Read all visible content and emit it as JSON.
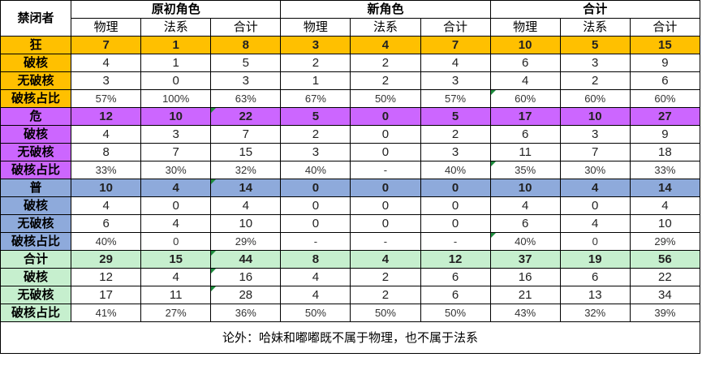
{
  "header": {
    "corner": "禁闭者",
    "groups": [
      "原初角色",
      "新角色",
      "合计"
    ],
    "subs": [
      "物理",
      "法系",
      "合计",
      "物理",
      "法系",
      "合计",
      "物理",
      "法系",
      "合计"
    ]
  },
  "colors": {
    "kuang": "#ffc000",
    "wei": "#cc66ff",
    "pu": "#8eaadb",
    "total": "#c6efce",
    "marker": "#1e8e3e"
  },
  "sections": [
    {
      "key": "kuang",
      "name": "狂",
      "totals": [
        "7",
        "1",
        "8",
        "3",
        "4",
        "7",
        "10",
        "5",
        "15"
      ],
      "rows": [
        {
          "label": "破核",
          "values": [
            "4",
            "1",
            "5",
            "2",
            "2",
            "4",
            "6",
            "3",
            "9"
          ]
        },
        {
          "label": "无破核",
          "values": [
            "3",
            "0",
            "3",
            "1",
            "2",
            "3",
            "4",
            "2",
            "6"
          ]
        },
        {
          "label": "破核占比",
          "values": [
            "57%",
            "100%",
            "63%",
            "67%",
            "50%",
            "57%",
            "60%",
            "60%",
            "60%"
          ]
        }
      ]
    },
    {
      "key": "wei",
      "name": "危",
      "totals": [
        "12",
        "10",
        "22",
        "5",
        "0",
        "5",
        "17",
        "10",
        "27"
      ],
      "rows": [
        {
          "label": "破核",
          "values": [
            "4",
            "3",
            "7",
            "2",
            "0",
            "2",
            "6",
            "3",
            "9"
          ]
        },
        {
          "label": "无破核",
          "values": [
            "8",
            "7",
            "15",
            "3",
            "0",
            "3",
            "11",
            "7",
            "18"
          ]
        },
        {
          "label": "破核占比",
          "values": [
            "33%",
            "30%",
            "32%",
            "40%",
            "-",
            "40%",
            "35%",
            "30%",
            "33%"
          ]
        }
      ]
    },
    {
      "key": "pu",
      "name": "普",
      "totals": [
        "10",
        "4",
        "14",
        "0",
        "0",
        "0",
        "10",
        "4",
        "14"
      ],
      "rows": [
        {
          "label": "破核",
          "values": [
            "4",
            "0",
            "4",
            "0",
            "0",
            "0",
            "4",
            "0",
            "4"
          ]
        },
        {
          "label": "无破核",
          "values": [
            "6",
            "4",
            "10",
            "0",
            "0",
            "0",
            "6",
            "4",
            "10"
          ]
        },
        {
          "label": "破核占比",
          "values": [
            "40%",
            "0",
            "29%",
            "-",
            "-",
            "-",
            "40%",
            "0",
            "29%"
          ]
        }
      ]
    },
    {
      "key": "total",
      "name": "合计",
      "totals": [
        "29",
        "15",
        "44",
        "8",
        "4",
        "12",
        "37",
        "19",
        "56"
      ],
      "rows": [
        {
          "label": "破核",
          "values": [
            "12",
            "4",
            "16",
            "4",
            "2",
            "6",
            "16",
            "6",
            "22"
          ]
        },
        {
          "label": "无破核",
          "values": [
            "17",
            "11",
            "28",
            "4",
            "2",
            "6",
            "21",
            "13",
            "34"
          ]
        },
        {
          "label": "破核占比",
          "values": [
            "41%",
            "27%",
            "36%",
            "50%",
            "50%",
            "50%",
            "43%",
            "32%",
            "39%"
          ]
        }
      ]
    }
  ],
  "note": "论外：哈妹和嘟嘟既不属于物理，也不属于法系"
}
